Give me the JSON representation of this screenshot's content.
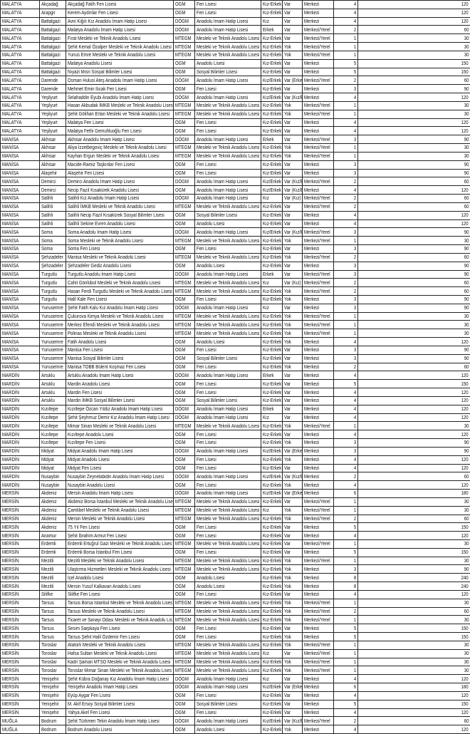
{
  "columns_count": 10,
  "rows": [
    [
      "MALATYA",
      "Akçadağ",
      "Akçadağ Fatih Fen Lisesi",
      "OGM",
      "Fen Lisesi",
      "Kız-Erkek",
      "Var",
      "Merkezi",
      "4",
      "120"
    ],
    [
      "MALATYA",
      "Arapgir",
      "Kerem Aydınlar Fen Lisesi",
      "OGM",
      "Fen Lisesi",
      "Kız-Erkek",
      "Var",
      "Merkezi",
      "4",
      "120"
    ],
    [
      "MALATYA",
      "Battalgazi",
      "Avni Kiğılı Kız Anadolu İmam Hatip Lisesi",
      "DÖGM",
      "Anadolu İmam Hatip Lisesi",
      "Kız",
      "Var",
      "Merkezi",
      "4",
      "120"
    ],
    [
      "MALATYA",
      "Battalgazi",
      "Malatya Anadolu İmam Hatip Lisesi",
      "DÖGM",
      "Anadolu İmam Hatip Lisesi",
      "Erkek",
      "Var",
      "Merkezi/Yerel",
      "2",
      "60"
    ],
    [
      "MALATYA",
      "Battalgazi",
      "Fırat Mesleki ve Teknik Anadolu Lisesi",
      "MTEGM",
      "Mesleki ve Teknik Anadolu Lisesi",
      "Kız-Erkek",
      "Var",
      "Merkezi/Yerel",
      "1",
      "30"
    ],
    [
      "MALATYA",
      "Battalgazi",
      "Şehit Kemal Özalper Mesleki ve Teknik Anadolu Lisesi",
      "MTEGM",
      "Mesleki ve Teknik Anadolu Lisesi",
      "Kız-Erkek",
      "Yok",
      "Merkezi/Yerel",
      "1",
      "30"
    ],
    [
      "MALATYA",
      "Battalgazi",
      "Yunus Emre Mesleki ve Teknik Anadolu Lisesi",
      "MTEGM",
      "Mesleki ve Teknik Anadolu Lisesi",
      "Kız-Erkek",
      "Yok",
      "Merkezi/Yerel",
      "1",
      "30"
    ],
    [
      "MALATYA",
      "Battalgazi",
      "Malatya Anadolu Lisesi",
      "OGM",
      "Anadolu Lisesi",
      "Kız-Erkek",
      "Var",
      "Merkezi",
      "5",
      "150"
    ],
    [
      "MALATYA",
      "Battalgazi",
      "Nıyazi Mısri Sosyal Bilimler Lisesi",
      "OGM",
      "Sosyal Bilimler Lisesi",
      "Kız-Erkek",
      "Var",
      "Merkezi",
      "5",
      "150"
    ],
    [
      "MALATYA",
      "Darende",
      "Osman Hulusi Ateş Anadolu İmam Hatip Lisesi",
      "DÖGM",
      "Anadolu İmam Hatip Lisesi",
      "Kız/Erkek",
      "Var (Erkek",
      "Merkezi/Yerel",
      "2",
      "60"
    ],
    [
      "MALATYA",
      "Darende",
      "Mehmet Emin Ilıcak Fen Lisesi",
      "OGM",
      "Fen Lisesi",
      "Kız-Erkek",
      "Var",
      "Merkezi",
      "3",
      "90"
    ],
    [
      "MALATYA",
      "Yeşilyurt",
      "Selahaddin Eyubi Anadolu İmam Hatip Lisesi",
      "DÖGM",
      "Anadolu İmam Hatip Lisesi",
      "Kız/Erkek",
      "Var (Kız/E",
      "Merkezi",
      "4",
      "120"
    ],
    [
      "MALATYA",
      "Yeşilyurt",
      "Hasan Akbudak İMKB Mesleki ve Teknik Anadolu Lises",
      "MTEGM",
      "Mesleki ve Teknik Anadolu Lisesi",
      "Kız-Erkek",
      "Yok",
      "Merkezi/Yerel",
      "1",
      "30"
    ],
    [
      "MALATYA",
      "Yeşilyurt",
      "Şehit Gökhan Ertan Mesleki ve Teknik Anadolu Lisesi",
      "MTEGM",
      "Mesleki ve Teknik Anadolu Lisesi",
      "Kız-Erkek",
      "Yok",
      "Merkezi/Yerel",
      "1",
      "30"
    ],
    [
      "MALATYA",
      "Yeşilyurt",
      "Malatya Fen Lisesi",
      "OGM",
      "Fen Lisesi",
      "Kız-Erkek",
      "Var",
      "Merkezi",
      "4",
      "120"
    ],
    [
      "MALATYA",
      "Yeşilyurt",
      "Malatya Fethi Gemuhluoğlu Fen Lisesi",
      "OGM",
      "Fen Lisesi",
      "Kız-Erkek",
      "Var",
      "Merkezi",
      "4",
      "120"
    ],
    [
      "MANİSA",
      "Akhisar",
      "Akhisar Anadolu İmam Hatip Lisesi",
      "DÖGM",
      "Anadolu İmam Hatip Lisesi",
      "Erkek",
      "Var",
      "Merkezi/Yerel",
      "3",
      "90"
    ],
    [
      "MANİSA",
      "Akhisar",
      "Aliya İzzetbegoviç Mesleki ve Teknik Anadolu Lisesi",
      "MTEGM",
      "Mesleki ve Teknik Anadolu Lisesi",
      "Kız-Erkek",
      "Yok",
      "Merkezi/Yerel",
      "1",
      "30"
    ],
    [
      "MANİSA",
      "Akhisar",
      "Kayhan Ergun Mesleki ve Teknik Anadolu Lisesi",
      "MTEGM",
      "Mesleki ve Teknik Anadolu Lisesi",
      "Kız-Erkek",
      "Yok",
      "Merkezi/Yerel",
      "1",
      "30"
    ],
    [
      "MANİSA",
      "Akhisar",
      "Macide-Ramiz Taşkınlar Fen Lisesi",
      "OGM",
      "Fen Lisesi",
      "Kız-Erkek",
      "Var",
      "Merkezi",
      "3",
      "90"
    ],
    [
      "MANİSA",
      "Alaşehir",
      "Alaşehir Fen Lisesi",
      "OGM",
      "Fen Lisesi",
      "Kız-Erkek",
      "Var",
      "Merkezi",
      "3",
      "90"
    ],
    [
      "MANİSA",
      "Demirci",
      "Demirci Anadolu İmam Hatip Lisesi",
      "DÖGM",
      "Anadolu İmam Hatip Lisesi",
      "Kız/Erkek",
      "Var (Kız/E",
      "Merkezi/Yerel",
      "2",
      "60"
    ],
    [
      "MANİSA",
      "Demirci",
      "Necip Fazıl Kısakürek Anadolu Lisesi",
      "OGM",
      "Anadolu İmam Hatip Lisesi",
      "Kız/Erkek",
      "Var (Kız/E",
      "Merkezi",
      "4",
      "120"
    ],
    [
      "MANİSA",
      "Salihli",
      "Salihli Kız Anadolu İmam Hatip Lisesi",
      "DÖGM",
      "Anadolu İmam Hatip Lisesi",
      "Kız",
      "Var (Kız)",
      "Merkezi/Yerel",
      "2",
      "60"
    ],
    [
      "MANİSA",
      "Salihli",
      "Salihli İMKB Mesleki ve Teknik Anadolu Lisesi",
      "MTEGM",
      "Mesleki ve Teknik Anadolu Lisesi",
      "Kız-Erkek",
      "Var",
      "Merkezi/Yerel",
      "2",
      "60"
    ],
    [
      "MANİSA",
      "Salihli",
      "Salihli Necip Fazıl Kısakürek Sosyal Bilimler Lisesi",
      "OGM",
      "Sosyal Bilimler Lisesi",
      "Kız-Erkek",
      "Var",
      "Merkezi",
      "4",
      "120"
    ],
    [
      "MANİSA",
      "Salihli",
      "Salihli Sekine Evren Anadolu Lisesi",
      "OGM",
      "Anadolu Lisesi",
      "Kız-Erkek",
      "Var",
      "Merkezi",
      "4",
      "120"
    ],
    [
      "MANİSA",
      "Soma",
      "Soma Anadolu İmam Hatip Lisesi",
      "DÖGM",
      "Anadolu İmam Hatip Lisesi",
      "Kız/Erkek",
      "Var (Kız/E",
      "Merkezi/Yerel",
      "3",
      "90"
    ],
    [
      "MANİSA",
      "Soma",
      "Soma Mesleki ve Teknik Anadolu Lisesi",
      "MTEGM",
      "Mesleki ve Teknik Anadolu Lisesi",
      "Kız-Erkek",
      "Yok",
      "Merkezi/Yerel",
      "1",
      "30"
    ],
    [
      "MANİSA",
      "Soma",
      "Soma Fen Lisesi",
      "OGM",
      "Fen Lisesi",
      "Kız-Erkek",
      "Var",
      "Merkezi",
      "3",
      "90"
    ],
    [
      "MANİSA",
      "Şehzadeler",
      "Manisa Mesleki ve Teknik Anadolu Lisesi",
      "MTEGM",
      "Mesleki ve Teknik Anadolu Lisesi",
      "Kız-Erkek",
      "Yok",
      "Merkezi/Yerel",
      "2",
      "60"
    ],
    [
      "MANİSA",
      "Şehzadeler",
      "Şehzadeler Gediz Anadolu Lisesi",
      "OGM",
      "Anadolu Lisesi",
      "Kız-Erkek",
      "Var",
      "Merkezi",
      "3",
      "90"
    ],
    [
      "MANİSA",
      "Turgutlu",
      "Turgutlu Anadolu İmam Hatip Lisesi",
      "DÖGM",
      "Anadolu İmam Hatip Lisesi",
      "Erkek",
      "Var",
      "Merkezi/Yerel",
      "3",
      "90"
    ],
    [
      "MANİSA",
      "Turgutlu",
      "Cahit Gönlübol Mesleki ve Teknik Anadolu Lisesi",
      "MTEGM",
      "Mesleki ve Teknik Anadolu Lisesi",
      "Kız",
      "Var (Kız)",
      "Merkezi/Yerel",
      "2",
      "60"
    ],
    [
      "MANİSA",
      "Turgutlu",
      "Hasan Ferdi Turgutlu Mesleki ve Teknik Anadolu Lisesi",
      "MTEGM",
      "Mesleki ve Teknik Anadolu Lisesi",
      "Kız-Erkek",
      "Yok",
      "Merkezi/Yerel",
      "2",
      "60"
    ],
    [
      "MANİSA",
      "Turgutlu",
      "Halil Kale Fen Lisesi",
      "OGM",
      "Fen Lisesi",
      "Kız-Erkek",
      "Yok",
      "Merkezi",
      "3",
      "90"
    ],
    [
      "MANİSA",
      "Yunusemre",
      "Şehit Fatih Kalu Kız Anadolu İmam Hatip Lisesi",
      "DÖGM",
      "Anadolu İmam Hatip Lisesi",
      "Kız",
      "Var",
      "Merkezi",
      "3",
      "90"
    ],
    [
      "MANİSA",
      "Yunusemre",
      "Çukurova Kimya Mesleki ve Teknik Anadolu Lisesi",
      "MTEGM",
      "Mesleki ve Teknik Anadolu Lisesi",
      "Kız-Erkek",
      "Yok",
      "Merkezi/Yerel",
      "1",
      "30"
    ],
    [
      "MANİSA",
      "Yunusemre",
      "Merkez Efendi Mesleki ve Teknik Anadolu Lisesi",
      "MTEGM",
      "Mesleki ve Teknik Anadolu Lisesi",
      "Kız-Erkek",
      "Yok",
      "Merkezi/Yerel",
      "1",
      "30"
    ],
    [
      "MANİSA",
      "Yunusemre",
      "Polinas Mesleki ve Teknik Anadolu Lisesi",
      "MTEGM",
      "Mesleki ve Teknik Anadolu Lisesi",
      "Kız-Erkek",
      "Yok",
      "Merkezi/Yerel",
      "1",
      "30"
    ],
    [
      "MANİSA",
      "Yunusemre",
      "Fatih Anadolu Lisesi",
      "OGM",
      "Anadolu Lisesi",
      "Kız-Erkek",
      "Yok",
      "Merkezi",
      "4",
      "120"
    ],
    [
      "MANİSA",
      "Yunusemre",
      "Manisa Fen Lisesi",
      "OGM",
      "Fen Lisesi",
      "Kız-Erkek",
      "Var",
      "Merkezi",
      "3",
      "90"
    ],
    [
      "MANİSA",
      "Yunusemre",
      "Manisa Sosyal Bilimler Lisesi",
      "OGM",
      "Sosyal Bilimler Lisesi",
      "Kız-Erkek",
      "Var",
      "Merkezi",
      "3",
      "90"
    ],
    [
      "MANİSA",
      "Yunusemre",
      "Manisa TOBB Bülent Koşmaz Fen Lisesi",
      "OGM",
      "Fen Lisesi",
      "Kız-Erkek",
      "Yok",
      "Merkezi",
      "2",
      "60"
    ],
    [
      "MARDİN",
      "Artuklu",
      "Artuklu Anadolu İmam Hatip Lisesi",
      "DÖGM",
      "Anadolu İmam Hatip Lisesi",
      "Erkek",
      "Var",
      "Merkezi",
      "4",
      "120"
    ],
    [
      "MARDİN",
      "Artuklu",
      "Mardin Anadolu Lisesi",
      "OGM",
      "Fen Lisesi",
      "Kız-Erkek",
      "Var",
      "Merkezi",
      "5",
      "150"
    ],
    [
      "MARDİN",
      "Artuklu",
      "Mardin Fen Lisesi",
      "OGM",
      "Fen Lisesi",
      "Kız-Erkek",
      "Var",
      "Merkezi",
      "4",
      "120"
    ],
    [
      "MARDİN",
      "Artuklu",
      "Mardin İMKB Sosyal Bilimler Lisesi",
      "OGM",
      "Sosyal Bilimler Lisesi",
      "Kız-Erkek",
      "Var",
      "Merkezi",
      "4",
      "120"
    ],
    [
      "MARDİN",
      "Kızıltepe",
      "Kızıltepe Özcan Yıldız Anadolu İmam Hatip Lisesi",
      "DÖGM",
      "Anadolu İmam Hatip Lisesi",
      "Erkek",
      "Var",
      "Merkezi",
      "4",
      "120"
    ],
    [
      "MARDİN",
      "Kızıltepe",
      "Şehit Şeyhmuz Demir Kız Anadolu İmam Hatip Lisesi",
      "DÖGM",
      "Anadolu İmam Hatip Lisesi",
      "Kız",
      "Var",
      "Merkezi",
      "4",
      "120"
    ],
    [
      "MARDİN",
      "Kızıltepe",
      "Mimar Sinan Mesleki ve Teknik Anadolu Lisesi",
      "MTEGM",
      "Mesleki ve Teknik Anadolu Lisesi",
      "Kız-Erkek",
      "Yok",
      "Merkezi/Yerel",
      "1",
      "30"
    ],
    [
      "MARDİN",
      "Kızıltepe",
      "Kızıltepe Anadolu Lisesi",
      "OGM",
      "Fen Lisesi",
      "Kız-Erkek",
      "Var",
      "Merkezi",
      "4",
      "120"
    ],
    [
      "MARDİN",
      "Kızıltepe",
      "Kızıltepe Fen Lisesi",
      "OGM",
      "Fen Lisesi",
      "Kız-Erkek",
      "Yok",
      "Merkezi",
      "3",
      "90"
    ],
    [
      "MARDİN",
      "Midyat",
      "Midyat Anadolu İmam Hatip Lisesi",
      "DÖGM",
      "Anadolu İmam Hatip Lisesi",
      "Kız/Erkek",
      "Var (Erkek",
      "Merkezi",
      "3",
      "90"
    ],
    [
      "MARDİN",
      "Midyat",
      "Midyat Anadolu Lisesi",
      "OGM",
      "Fen Lisesi",
      "Kız-Erkek",
      "Yok",
      "Merkezi",
      "4",
      "120"
    ],
    [
      "MARDİN",
      "Midyat",
      "Midyat Fen Lisesi",
      "OGM",
      "Fen Lisesi",
      "Kız-Erkek",
      "Var",
      "Merkezi",
      "4",
      "120"
    ],
    [
      "MARDİN",
      "Nusaybin",
      "Nusaybin Zeynelabidin Anadolu İmam Hatip Lisesi",
      "DÖGM",
      "Anadolu İmam Hatip Lisesi",
      "Kız/Erkek",
      "Var (Kız/E",
      "Merkezi",
      "2",
      "60"
    ],
    [
      "MARDİN",
      "Nusaybin",
      "Nusaybin Anadolu Lisesi",
      "OGM",
      "Fen Lisesi",
      "Kız-Erkek",
      "Yok",
      "Merkezi",
      "4",
      "120"
    ],
    [
      "MERSİN",
      "Akdeniz",
      "Mersin Anadolu İmam Hatip Lisesi",
      "DÖGM",
      "Anadolu İmam Hatip Lisesi",
      "Kız/Erkek",
      "Var (Erkek",
      "Merkezi",
      "6",
      "180"
    ],
    [
      "MERSİN",
      "Akdeniz",
      "Akdeniz Borsa İstanbul Mesleki ve Teknik Anadolu Lise",
      "MTEGM",
      "Mesleki ve Teknik Anadolu Lisesi",
      "Kız-Erkek",
      "Var",
      "Merkezi/Yerel",
      "1",
      "30"
    ],
    [
      "MERSİN",
      "Akdeniz",
      "Çamlıbel Mesleki ve Teknik Anadolu Lisesi",
      "MTEGM",
      "Mesleki ve Teknik Anadolu Lisesi",
      "Kız",
      "Yok",
      "Merkezi/Yerel",
      "1",
      "30"
    ],
    [
      "MERSİN",
      "Akdeniz",
      "Mersin Mesleki ve Teknik Anadolu Lisesi",
      "MTEGM",
      "Mesleki ve Teknik Anadolu Lisesi",
      "Kız-Erkek",
      "Yok",
      "Merkezi/Yerel",
      "2",
      "60"
    ],
    [
      "MERSİN",
      "Akdeniz",
      "75.Yıl Fen Lisesi",
      "OGM",
      "Fen Lisesi",
      "Kız-Erkek",
      "Var",
      "Merkezi",
      "5",
      "150"
    ],
    [
      "MERSİN",
      "Anamur",
      "Şehit İbrahim Armut Fen Lisesi",
      "OGM",
      "Fen Lisesi",
      "Kız-Erkek",
      "Var",
      "Merkezi",
      "4",
      "120"
    ],
    [
      "MERSİN",
      "Erdemli",
      "Erdemli Ertuğrul Gazi Mesleki ve Teknik Anadolu Lises",
      "MTEGM",
      "Mesleki ve Teknik Anadolu Lisesi",
      "Kız-Erkek",
      "Var",
      "Merkezi/Yerel",
      "1",
      "30"
    ],
    [
      "MERSİN",
      "Erdemli",
      "Erdemli Borsa İstanbul Fen Lisesi",
      "OGM",
      "Fen Lisesi",
      "Kız-Erkek",
      "Var",
      "Merkezi",
      "5",
      "150"
    ],
    [
      "MERSİN",
      "Mezitli",
      "Mezitli Mesleki ve Teknik Anadolu Lisesi",
      "MTEGM",
      "Mesleki ve Teknik Anadolu Lisesi",
      "Kız-Erkek",
      "Yok",
      "Merkezi/Yerel",
      "1",
      "30"
    ],
    [
      "MERSİN",
      "Mezitli",
      "Ulaştırma Hizmetleri Mesleki ve Teknik Anadolu Lisesi",
      "MTEGM",
      "Mesleki ve Teknik Anadolu Lisesi",
      "Kız-Erkek",
      "Yok",
      "Merkezi",
      "3",
      "90"
    ],
    [
      "MERSİN",
      "Mezitli",
      "İçel Anadolu Lisesi",
      "OGM",
      "Anadolu Lisesi",
      "Kız-Erkek",
      "Yok",
      "Merkezi",
      "8",
      "240"
    ],
    [
      "MERSİN",
      "Mezitli",
      "Mersin Yusuf Kalkavan Anadolu Lisesi",
      "OGM",
      "Anadolu Lisesi",
      "Kız-Erkek",
      "Yok",
      "Merkezi",
      "8",
      "240"
    ],
    [
      "MERSİN",
      "Silifke",
      "Silifke Fen Lisesi",
      "OGM",
      "Fen Lisesi",
      "Kız-Erkek",
      "Var",
      "Merkezi",
      "4",
      "120"
    ],
    [
      "MERSİN",
      "Tarsus",
      "Tarsus Borsa İstanbul Mesleki ve Teknik Anadolu Lises",
      "MTEGM",
      "Mesleki ve Teknik Anadolu Lisesi",
      "Kız-Erkek",
      "Yok",
      "Merkezi/Yerel",
      "1",
      "30"
    ],
    [
      "MERSİN",
      "Tarsus",
      "Tarsus Mesleki ve Teknik Anadolu Lisesi",
      "MTEGM",
      "Mesleki ve Teknik Anadolu Lisesi",
      "Kız-Erkek",
      "Yok",
      "Merkezi/Yerel",
      "2",
      "60"
    ],
    [
      "MERSİN",
      "Tarsus",
      "Ticaret ve Sanayi Odası Mesleki ve Teknik Anadolu Lis",
      "MTEGM",
      "Mesleki ve Teknik Anadolu Lisesi",
      "Kız-Erkek",
      "Yok",
      "Merkezi/Yerel",
      "1",
      "30"
    ],
    [
      "MERSİN",
      "Tarsus",
      "Sesim Sarpkaya Fen Lisesi",
      "OGM",
      "Fen Lisesi",
      "Kız-Erkek",
      "Var",
      "Merkezi",
      "5",
      "150"
    ],
    [
      "MERSİN",
      "Tarsus",
      "Tarsus Şehit Halil Özdemir Fen Lisesi",
      "OGM",
      "Fen Lisesi",
      "Kız-Erkek",
      "Yok",
      "Merkezi",
      "5",
      "150"
    ],
    [
      "MERSİN",
      "Toroslar",
      "Atatürk Mesleki ve Teknik Anadolu Lisesi",
      "MTEGM",
      "Mesleki ve Teknik Anadolu Lisesi",
      "Kız-Erkek",
      "Yok",
      "Merkezi/Yerel",
      "1",
      "30"
    ],
    [
      "MERSİN",
      "Toroslar",
      "Hafsa Sultan Mesleki ve Teknik Anadolu Lisesi",
      "MTEGM",
      "Mesleki ve Teknik Anadolu Lisesi",
      "Kız",
      "Var",
      "Merkezi/Yerel",
      "1",
      "30"
    ],
    [
      "MERSİN",
      "Toroslar",
      "Kadri Şaman MTSO Mesleki ve Teknik Anadolu Lisesi",
      "MTEGM",
      "Mesleki ve Teknik Anadolu Lisesi",
      "Kız-Erkek",
      "Yok",
      "Merkezi/Yerel",
      "1",
      "30"
    ],
    [
      "MERSİN",
      "Toroslar",
      "Toroslar Mimar Sinan Mesleki ve Teknik Anadolu Lises",
      "MTEGM",
      "Mesleki ve Teknik Anadolu Lisesi",
      "Kız-Erkek",
      "Yok",
      "Merkezi/Yerel",
      "1",
      "30"
    ],
    [
      "MERSİN",
      "Yenişehir",
      "Şehit Kübra Doğanay Kız Anadolu İmam Hatip Lisesi",
      "DÖGM",
      "Anadolu İmam Hatip Lisesi",
      "Kız",
      "Var",
      "Merkezi",
      "4",
      "120"
    ],
    [
      "MERSİN",
      "Yenişehir",
      "Yenişehir Anadolu İmam Hatip Lisesi",
      "DÖGM",
      "Anadolu İmam Hatip Lisesi",
      "Kız/Erkek",
      "Var (Erkek",
      "Merkezi",
      "6",
      "180"
    ],
    [
      "MERSİN",
      "Yenişehir",
      "Eyüp Aygar Fen Lisesi",
      "OGM",
      "Fen Lisesi",
      "Kız-Erkek",
      "Var",
      "Merkezi",
      "4",
      "120"
    ],
    [
      "MERSİN",
      "Yenişehir",
      "M. Akif Ersoy Sosyal Bilimler Lisesi",
      "OGM",
      "Sosyal Bilimler Lisesi",
      "Kız-Erkek",
      "Var",
      "Merkezi",
      "5",
      "150"
    ],
    [
      "MERSİN",
      "Yenişehir",
      "Yahya Akel Fen Lisesi",
      "OGM",
      "Fen Lisesi",
      "Kız-Erkek",
      "Var",
      "Merkezi",
      "4",
      "120"
    ],
    [
      "MUĞLA",
      "Bodrum",
      "Şehit Türkmen Tekin Anadolu İmam Hatip Lisesi",
      "DÖGM",
      "Anadolu İmam Hatip Lisesi",
      "Kız/Erkek",
      "Var (Kız/E",
      "Merkezi/Yerel",
      "2",
      "60"
    ],
    [
      "MUĞLA",
      "Bodrum",
      "Bodrum Anadolu Lisesi",
      "OGM",
      "Anadolu Lisesi",
      "Kız-Erkek",
      "Yok",
      "Merkezi",
      "4",
      "120"
    ]
  ]
}
